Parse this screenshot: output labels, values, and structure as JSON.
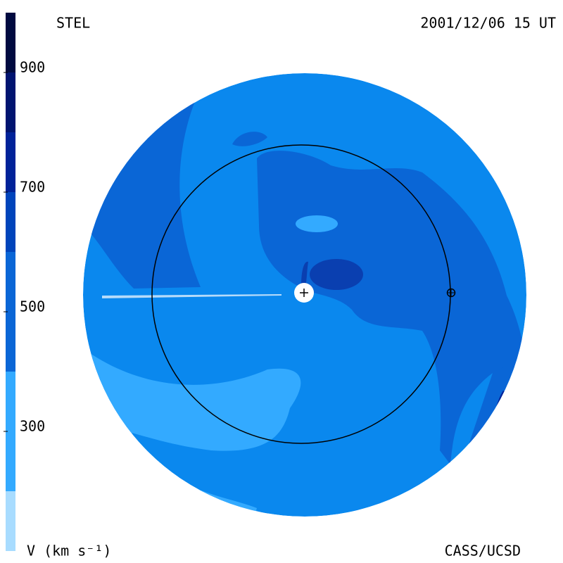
{
  "chart_data": {
    "type": "colorbar",
    "source": "STEL",
    "title": "2001/12/06 15 UT",
    "credit": "CASS/UCSD",
    "label": "V (km s⁻¹)",
    "ylim": [
      100,
      1000
    ],
    "yticks": [
      300,
      500,
      700,
      900
    ],
    "levels": [
      100,
      200,
      400,
      600,
      700,
      800,
      900,
      1000
    ],
    "colors": [
      "#a8dcff",
      "#33aaff",
      "#0a66d6",
      "#0044bb",
      "#002299",
      "#001470",
      "#000a40"
    ]
  }
}
